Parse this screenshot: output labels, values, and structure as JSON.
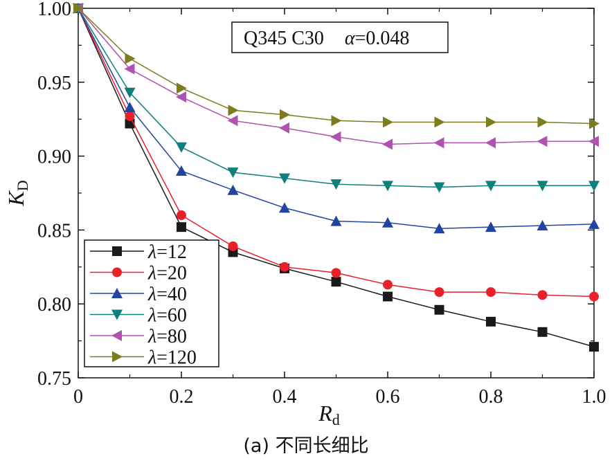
{
  "caption": "(a) 不同长细比",
  "chart_data": {
    "type": "line",
    "annotation": {
      "text_main": "Q345 C30",
      "alpha_symbol": "α",
      "alpha_value": "=0.048"
    },
    "xlabel": {
      "main": "R",
      "sub": "d"
    },
    "ylabel": {
      "main": "K",
      "sub": "D"
    },
    "xlim": [
      0,
      1.0
    ],
    "ylim": [
      0.75,
      1.0
    ],
    "xticks": [
      0,
      0.2,
      0.4,
      0.6,
      0.8,
      1.0
    ],
    "xtick_labels": [
      "0",
      "0.2",
      "0.4",
      "0.6",
      "0.8",
      "1.0"
    ],
    "yticks": [
      0.75,
      0.8,
      0.85,
      0.9,
      0.95,
      1.0
    ],
    "ytick_labels": [
      "0.75",
      "0.80",
      "0.85",
      "0.90",
      "0.95",
      "1.00"
    ],
    "grid": false,
    "legend_position": "bottom-left",
    "x": [
      0,
      0.1,
      0.2,
      0.3,
      0.4,
      0.5,
      0.6,
      0.7,
      0.8,
      0.9,
      1.0
    ],
    "series": [
      {
        "symbol": "λ",
        "name": "=12",
        "color": "#1a1a1a",
        "marker": "square",
        "values": [
          1.0,
          0.922,
          0.852,
          0.835,
          0.824,
          0.815,
          0.805,
          0.796,
          0.788,
          0.781,
          0.771
        ]
      },
      {
        "symbol": "λ",
        "name": "=20",
        "color": "#e8202a",
        "marker": "circle",
        "values": [
          1.0,
          0.927,
          0.86,
          0.839,
          0.825,
          0.821,
          0.813,
          0.808,
          0.808,
          0.806,
          0.805
        ]
      },
      {
        "symbol": "λ",
        "name": "=40",
        "color": "#2244a0",
        "marker": "triangle-up",
        "values": [
          1.0,
          0.933,
          0.89,
          0.877,
          0.865,
          0.856,
          0.855,
          0.851,
          0.852,
          0.853,
          0.854
        ]
      },
      {
        "symbol": "λ",
        "name": "=60",
        "color": "#0e7f7a",
        "marker": "triangle-down",
        "values": [
          1.0,
          0.943,
          0.906,
          0.889,
          0.885,
          0.881,
          0.88,
          0.879,
          0.88,
          0.88,
          0.88
        ]
      },
      {
        "symbol": "λ",
        "name": "=80",
        "color": "#b052b0",
        "marker": "triangle-left",
        "values": [
          1.0,
          0.959,
          0.94,
          0.924,
          0.919,
          0.913,
          0.908,
          0.909,
          0.909,
          0.91,
          0.91
        ]
      },
      {
        "symbol": "λ",
        "name": "=120",
        "color": "#7d7d1e",
        "marker": "triangle-right",
        "values": [
          1.0,
          0.966,
          0.946,
          0.931,
          0.928,
          0.924,
          0.923,
          0.923,
          0.923,
          0.923,
          0.922
        ]
      }
    ]
  }
}
